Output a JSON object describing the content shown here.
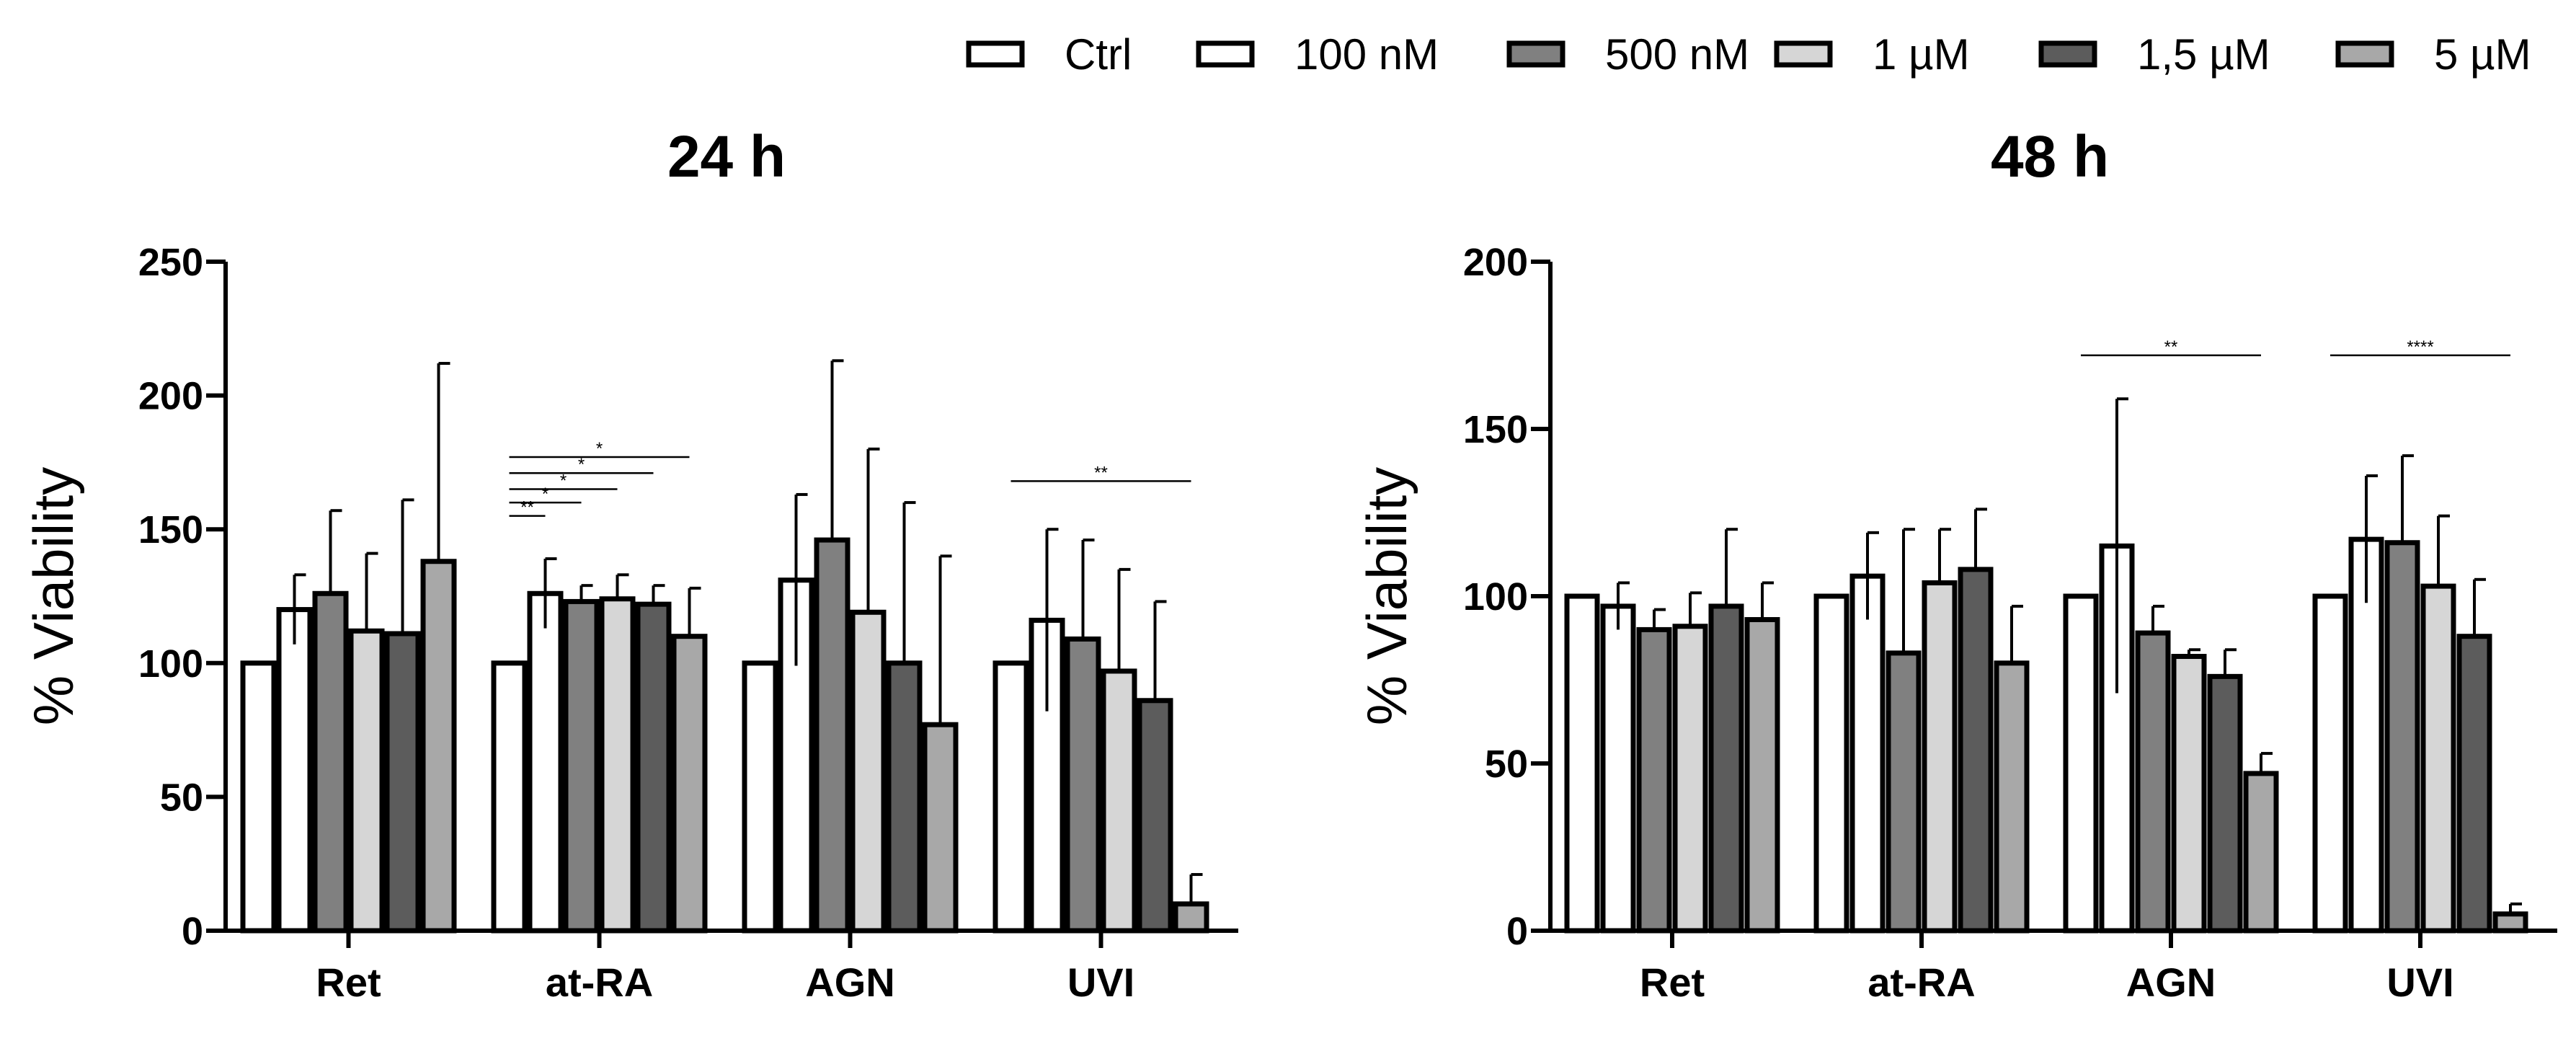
{
  "legend": [
    {
      "label": "Ctrl",
      "fill": "#ffffff",
      "inner": null
    },
    {
      "label": "100 nM",
      "fill": "#ffffff",
      "inner": null
    },
    {
      "label": "500 nM",
      "fill": "#808080",
      "inner": null
    },
    {
      "label": "1 µM",
      "fill": "#d6d6d6",
      "inner": null
    },
    {
      "label": "1,5 µM",
      "fill": "#5c5c5c",
      "inner": null
    },
    {
      "label": "5 µM",
      "fill": "#a8a8a8",
      "inner": null
    }
  ],
  "chart_data": [
    {
      "type": "bar",
      "title": "24 h",
      "ylabel": "% Viability",
      "xlabel": "",
      "ylim": [
        0,
        250
      ],
      "yticks": [
        0,
        50,
        100,
        150,
        200,
        250
      ],
      "categories": [
        "Ret",
        "at-RA",
        "AGN",
        "UVI"
      ],
      "series": [
        {
          "name": "Ctrl",
          "values": [
            100,
            100,
            100,
            100
          ],
          "errors": [
            0,
            0,
            0,
            0
          ]
        },
        {
          "name": "100 nM",
          "values": [
            120,
            126,
            131,
            116
          ],
          "errors": [
            13,
            13,
            32,
            34
          ]
        },
        {
          "name": "500 nM",
          "values": [
            126,
            123,
            146,
            109
          ],
          "errors": [
            31,
            6,
            67,
            37
          ]
        },
        {
          "name": "1 µM",
          "values": [
            112,
            124,
            119,
            97
          ],
          "errors": [
            29,
            9,
            61,
            38
          ]
        },
        {
          "name": "1,5 µM",
          "values": [
            111,
            122,
            100,
            86
          ],
          "errors": [
            50,
            7,
            60,
            37
          ]
        },
        {
          "name": "5 µM",
          "values": [
            138,
            110,
            77,
            10
          ],
          "errors": [
            74,
            18,
            63,
            11
          ]
        }
      ],
      "significance": [
        {
          "group": "at-RA",
          "from": "Ctrl",
          "to": "100 nM",
          "y": 155,
          "label": "**"
        },
        {
          "group": "at-RA",
          "from": "Ctrl",
          "to": "500 nM",
          "y": 160,
          "label": "*"
        },
        {
          "group": "at-RA",
          "from": "Ctrl",
          "to": "1 µM",
          "y": 165,
          "label": "*"
        },
        {
          "group": "at-RA",
          "from": "Ctrl",
          "to": "1,5 µM",
          "y": 171,
          "label": "*"
        },
        {
          "group": "at-RA",
          "from": "Ctrl",
          "to": "5 µM",
          "y": 177,
          "label": "*"
        },
        {
          "group": "UVI",
          "from": "Ctrl",
          "to": "5 µM",
          "y": 168,
          "label": "**"
        }
      ]
    },
    {
      "type": "bar",
      "title": "48 h",
      "ylabel": "% Viability",
      "xlabel": "",
      "ylim": [
        0,
        200
      ],
      "yticks": [
        0,
        50,
        100,
        150,
        200
      ],
      "categories": [
        "Ret",
        "at-RA",
        "AGN",
        "UVI"
      ],
      "series": [
        {
          "name": "Ctrl",
          "values": [
            100,
            100,
            100,
            100
          ],
          "errors": [
            0,
            0,
            0,
            0
          ]
        },
        {
          "name": "100 nM",
          "values": [
            97,
            106,
            115,
            117
          ],
          "errors": [
            7,
            13,
            44,
            19
          ]
        },
        {
          "name": "500 nM",
          "values": [
            90,
            83,
            89,
            116
          ],
          "errors": [
            6,
            37,
            8,
            26
          ]
        },
        {
          "name": "1 µM",
          "values": [
            91,
            104,
            82,
            103
          ],
          "errors": [
            10,
            16,
            2,
            21
          ]
        },
        {
          "name": "1,5 µM",
          "values": [
            97,
            108,
            76,
            88
          ],
          "errors": [
            23,
            18,
            8,
            17
          ]
        },
        {
          "name": "5 µM",
          "values": [
            93,
            80,
            47,
            5
          ],
          "errors": [
            11,
            17,
            6,
            3
          ]
        }
      ],
      "significance": [
        {
          "group": "AGN",
          "from": "Ctrl",
          "to": "5 µM",
          "y": 172,
          "label": "**"
        },
        {
          "group": "UVI",
          "from": "Ctrl",
          "to": "5 µM",
          "y": 172,
          "label": "****"
        }
      ]
    }
  ]
}
